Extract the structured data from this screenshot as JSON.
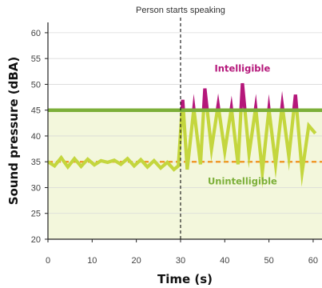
{
  "chart_data": {
    "type": "line",
    "title": "",
    "xlabel": "Time (s)",
    "ylabel": "Sound pressure (dBA)",
    "xlim": [
      0,
      62
    ],
    "ylim": [
      20,
      62
    ],
    "x_ticks": [
      0,
      10,
      20,
      30,
      40,
      50,
      60
    ],
    "y_ticks": [
      20,
      25,
      30,
      35,
      40,
      45,
      50,
      55,
      60
    ],
    "grid": "horizontal",
    "intelligibility_threshold": 45,
    "background_level": 35,
    "event_x": 30,
    "annotations": {
      "event": "Person starts speaking",
      "above": "Intelligible",
      "below": "Unintelligible"
    },
    "series": [
      {
        "x": [
          0,
          1.5,
          3,
          4.5,
          6,
          7.5,
          9,
          10.5,
          12,
          13.5,
          15,
          16.5,
          18,
          19.5,
          21,
          22.5,
          24,
          25.5,
          27,
          28.5,
          29.5,
          30.5,
          31.5,
          33,
          34.5,
          35.5,
          37,
          38.5,
          40,
          41.5,
          43,
          44,
          45.5,
          47,
          48.5,
          50,
          51.5,
          53,
          54.5,
          56,
          57.5,
          59,
          60.5
        ],
        "y": [
          35.0,
          34.2,
          35.8,
          34.0,
          35.6,
          34.1,
          35.5,
          34.4,
          35.2,
          34.9,
          35.3,
          34.5,
          35.6,
          34.2,
          35.4,
          34.0,
          35.2,
          33.8,
          34.9,
          33.5,
          34.2,
          47.0,
          33.5,
          45.3,
          34.5,
          49.2,
          37.5,
          46.0,
          37.0,
          45.4,
          34.5,
          50.2,
          36.5,
          45.5,
          33.0,
          45.2,
          34.5,
          46.0,
          36.0,
          48.0,
          33.0,
          42.0,
          40.5
        ]
      }
    ],
    "colors": {
      "line": "#c4d63e",
      "above_threshold": "#b5177a",
      "threshold_line": "#7caf39",
      "background_line": "#f0911e",
      "band_fill": "#f3f7dc",
      "event_line": "#111111"
    }
  }
}
